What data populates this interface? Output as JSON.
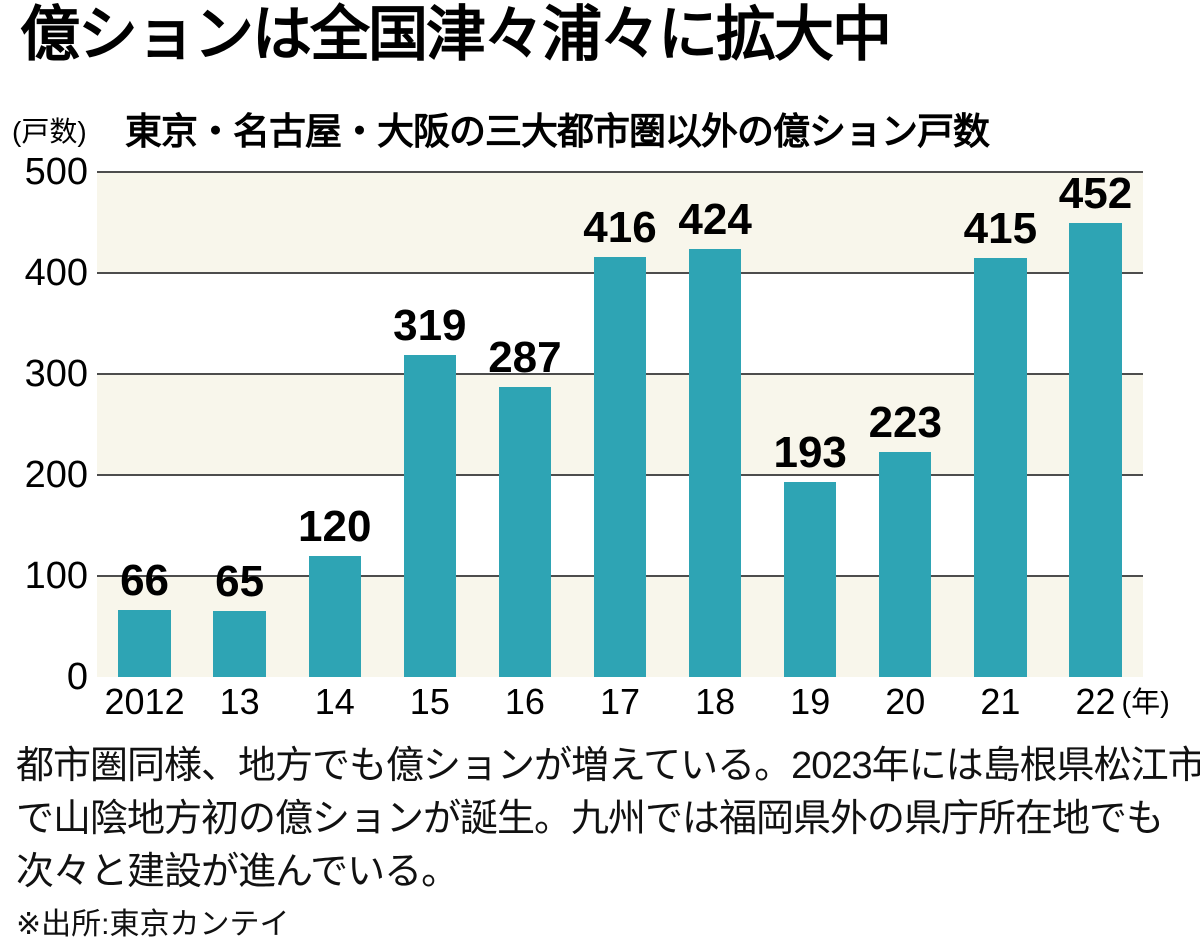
{
  "page": {
    "title": "億ションは全国津々浦々に拡大中",
    "caption_lines": [
      "都市圏同様、地方でも億ションが増えている。2023年には島根県松江市",
      "で山陰地方初の億ションが誕生。九州では福岡県外の県庁所在地でも",
      "次々と建設が進んでいる。"
    ],
    "source": "※出所:東京カンテイ"
  },
  "chart_data": {
    "type": "bar",
    "title": "東京・名古屋・大阪の三大都市圏以外の億ション戸数",
    "unit_label": "(戸数)",
    "year_suffix": "(年)",
    "categories": [
      "2012",
      "13",
      "14",
      "15",
      "16",
      "17",
      "18",
      "19",
      "20",
      "21",
      "22"
    ],
    "values": [
      66,
      65,
      120,
      319,
      287,
      416,
      424,
      193,
      223,
      415,
      452
    ],
    "ylim": [
      0,
      500
    ],
    "yticks": [
      500,
      400,
      300,
      200,
      100,
      0
    ],
    "grid": true,
    "legend": "none",
    "colors": {
      "bar": "#2ea4b4",
      "band": "#f8f6eb",
      "gridline": "#4d4d4d",
      "background": "#ffffff",
      "text": "#000000"
    }
  }
}
